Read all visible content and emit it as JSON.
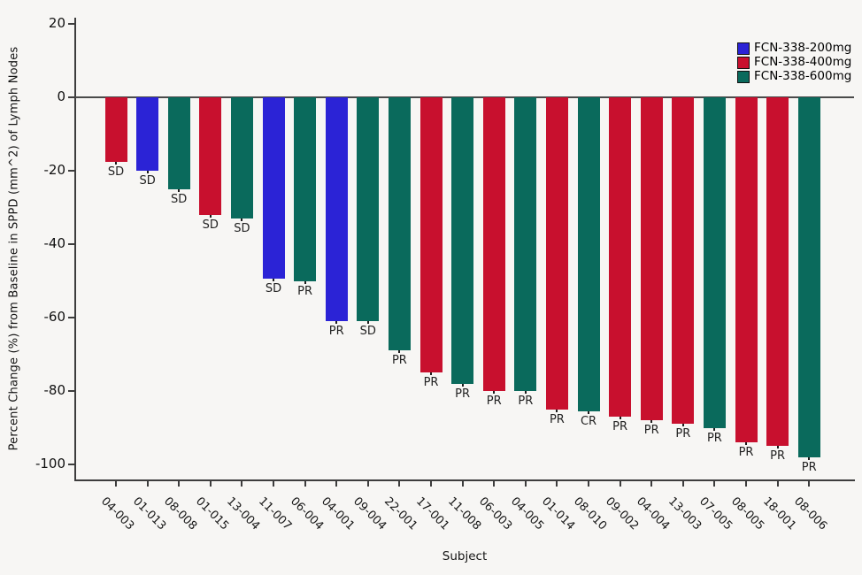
{
  "figure": {
    "ylabel": "Percent Change (%) from Baseline in SPPD (mm^2) of Lymph Nodes",
    "xlabel": "Subject",
    "background": "#f7f6f4",
    "yticks": [
      20,
      0,
      -20,
      -40,
      -60,
      -80,
      -100
    ],
    "legend": [
      {
        "label": "FCN-338-200mg",
        "color": "#2b23d6"
      },
      {
        "label": "FCN-338-400mg",
        "color": "#c8102e"
      },
      {
        "label": "FCN-338-600mg",
        "color": "#0a6a5c"
      }
    ]
  },
  "chart_data": {
    "type": "bar",
    "title": "",
    "xlabel": "Subject",
    "ylabel": "Percent Change (%) from Baseline in SPPD (mm^2) of Lymph Nodes",
    "ylim": [
      -104,
      22
    ],
    "yticks": [
      20,
      0,
      -20,
      -40,
      -60,
      -80,
      -100
    ],
    "legend_position": "top-right",
    "grid": false,
    "series_colors": {
      "FCN-338-200mg": "#2b23d6",
      "FCN-338-400mg": "#c8102e",
      "FCN-338-600mg": "#0a6a5c"
    },
    "bars": [
      {
        "subject": "04-003",
        "value": -17.5,
        "response": "SD",
        "group": "FCN-338-400mg"
      },
      {
        "subject": "01-013",
        "value": -20,
        "response": "SD",
        "group": "FCN-338-200mg"
      },
      {
        "subject": "08-008",
        "value": -25,
        "response": "SD",
        "group": "FCN-338-600mg"
      },
      {
        "subject": "01-015",
        "value": -32,
        "response": "SD",
        "group": "FCN-338-400mg"
      },
      {
        "subject": "13-004",
        "value": -33,
        "response": "SD",
        "group": "FCN-338-600mg"
      },
      {
        "subject": "11-007",
        "value": -49.5,
        "response": "SD",
        "group": "FCN-338-200mg"
      },
      {
        "subject": "06-004",
        "value": -50,
        "response": "PR",
        "group": "FCN-338-600mg"
      },
      {
        "subject": "04-001",
        "value": -61,
        "response": "PR",
        "group": "FCN-338-200mg"
      },
      {
        "subject": "09-004",
        "value": -61,
        "response": "SD",
        "group": "FCN-338-600mg"
      },
      {
        "subject": "22-001",
        "value": -69,
        "response": "PR",
        "group": "FCN-338-600mg"
      },
      {
        "subject": "17-001",
        "value": -75,
        "response": "PR",
        "group": "FCN-338-400mg"
      },
      {
        "subject": "11-008",
        "value": -78,
        "response": "PR",
        "group": "FCN-338-600mg"
      },
      {
        "subject": "06-003",
        "value": -80,
        "response": "PR",
        "group": "FCN-338-400mg"
      },
      {
        "subject": "04-005",
        "value": -80,
        "response": "PR",
        "group": "FCN-338-600mg"
      },
      {
        "subject": "01-014",
        "value": -85,
        "response": "PR",
        "group": "FCN-338-400mg"
      },
      {
        "subject": "08-010",
        "value": -85.5,
        "response": "CR",
        "group": "FCN-338-600mg"
      },
      {
        "subject": "09-002",
        "value": -87,
        "response": "PR",
        "group": "FCN-338-400mg"
      },
      {
        "subject": "04-004",
        "value": -88,
        "response": "PR",
        "group": "FCN-338-400mg"
      },
      {
        "subject": "13-003",
        "value": -89,
        "response": "PR",
        "group": "FCN-338-400mg"
      },
      {
        "subject": "07-005",
        "value": -90,
        "response": "PR",
        "group": "FCN-338-600mg"
      },
      {
        "subject": "08-005",
        "value": -94,
        "response": "PR",
        "group": "FCN-338-400mg"
      },
      {
        "subject": "18-001",
        "value": -95,
        "response": "PR",
        "group": "FCN-338-400mg"
      },
      {
        "subject": "08-006",
        "value": -98,
        "response": "PR",
        "group": "FCN-338-600mg"
      }
    ]
  }
}
